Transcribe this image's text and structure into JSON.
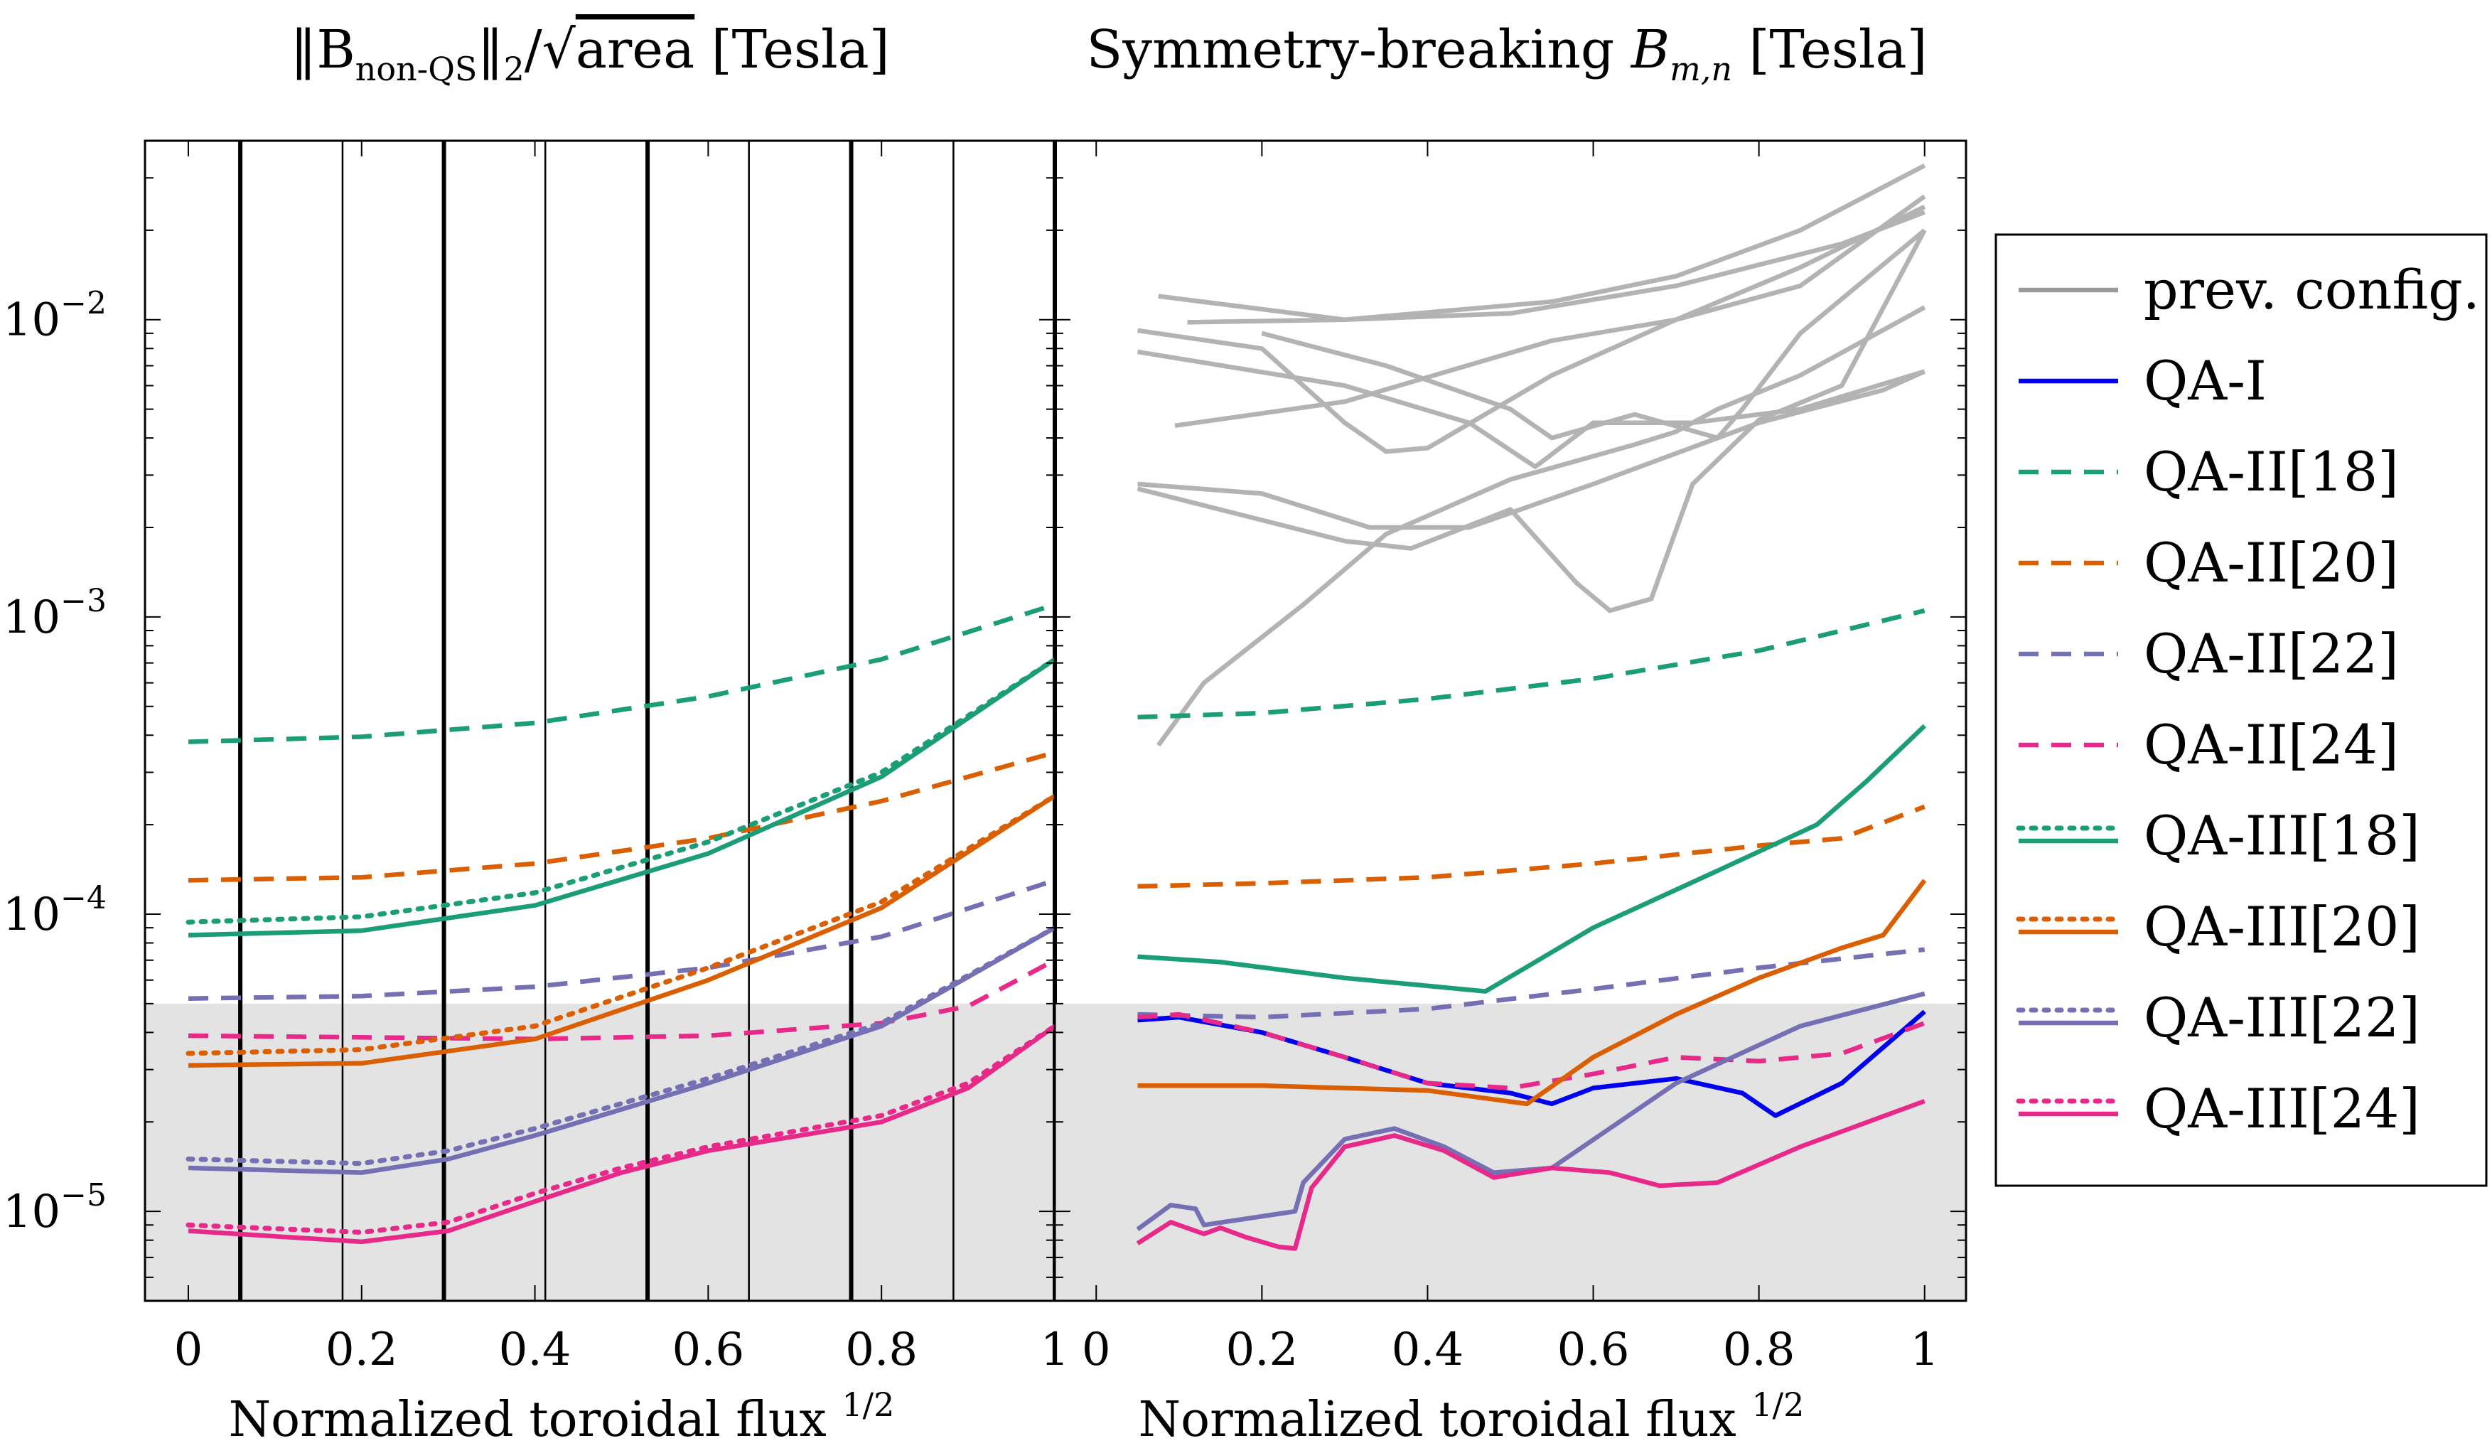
{
  "figure": {
    "left_title_parts": {
      "norm_open": "‖B",
      "sub": "non-QS",
      "norm_close": "‖",
      "norm_sub": "2",
      "slash": "/",
      "sqrt": "√",
      "area": "area",
      "unit": "[Tesla]"
    },
    "right_title_parts": {
      "text": "Symmetry-breaking ",
      "var": "B",
      "sub": "m,n",
      "unit": " [Tesla]"
    },
    "xlabel_text": "Normalized toroidal flux ",
    "xlabel_sup": "1/2"
  },
  "chart_data": [
    {
      "type": "line",
      "title": "||B_non-QS||_2/sqrt(area) [Tesla]",
      "xlabel": "Normalized toroidal flux ^1/2",
      "ylabel": "",
      "yscale": "log",
      "xlim": [
        -0.05,
        1.0
      ],
      "ylim": [
        5e-06,
        0.04
      ],
      "xticks": [
        0,
        0.2,
        0.4,
        0.6,
        0.8,
        1
      ],
      "xtick_labels": [
        "0",
        "0.2",
        "0.4",
        "0.6",
        "0.8",
        "1"
      ],
      "yticks": [
        1e-05,
        0.0001,
        0.001,
        0.01
      ],
      "ytick_labels": [
        {
          "base": "10",
          "exp": "−5"
        },
        {
          "base": "10",
          "exp": "−4"
        },
        {
          "base": "10",
          "exp": "−3"
        },
        {
          "base": "10",
          "exp": "−2"
        }
      ],
      "shaded_below": 5e-05,
      "vlines_thick": [
        0.06,
        0.295,
        0.53,
        0.765,
        1.0
      ],
      "vlines_thin": [
        0.178,
        0.412,
        0.647,
        0.883
      ],
      "series": [
        {
          "name": "QA-II[18]",
          "color": "#1b9e77",
          "style": "dashed",
          "x": [
            0,
            0.2,
            0.4,
            0.6,
            0.8,
            1
          ],
          "y": [
            0.00038,
            0.000395,
            0.00044,
            0.00054,
            0.00072,
            0.0011
          ]
        },
        {
          "name": "QA-II[20]",
          "color": "#d95f02",
          "style": "dashed",
          "x": [
            0,
            0.2,
            0.4,
            0.6,
            0.8,
            1
          ],
          "y": [
            0.00013,
            0.000133,
            0.000148,
            0.00018,
            0.00024,
            0.00035
          ]
        },
        {
          "name": "QA-II[22]",
          "color": "#7570b3",
          "style": "dashed",
          "x": [
            0,
            0.2,
            0.4,
            0.6,
            0.8,
            1
          ],
          "y": [
            5.2e-05,
            5.3e-05,
            5.7e-05,
            6.6e-05,
            8.4e-05,
            0.00013
          ]
        },
        {
          "name": "QA-II[24]",
          "color": "#e7298a",
          "style": "dashed",
          "x": [
            0,
            0.2,
            0.4,
            0.6,
            0.8,
            0.9,
            1
          ],
          "y": [
            3.9e-05,
            3.85e-05,
            3.8e-05,
            3.9e-05,
            4.3e-05,
            4.9e-05,
            7e-05
          ]
        },
        {
          "name": "QA-III[18] (dotted)",
          "color": "#1b9e77",
          "style": "dotted",
          "x": [
            0,
            0.2,
            0.4,
            0.6,
            0.8,
            1
          ],
          "y": [
            9.4e-05,
            9.8e-05,
            0.000118,
            0.000175,
            0.0003,
            0.00072
          ]
        },
        {
          "name": "QA-III[18]",
          "color": "#1b9e77",
          "style": "solid",
          "x": [
            0,
            0.2,
            0.4,
            0.6,
            0.8,
            1
          ],
          "y": [
            8.5e-05,
            8.8e-05,
            0.000107,
            0.00016,
            0.00029,
            0.00072
          ]
        },
        {
          "name": "QA-III[20] (dotted)",
          "color": "#d95f02",
          "style": "dotted",
          "x": [
            0,
            0.2,
            0.4,
            0.6,
            0.8,
            1
          ],
          "y": [
            3.4e-05,
            3.5e-05,
            4.2e-05,
            6.6e-05,
            0.00011,
            0.00025
          ]
        },
        {
          "name": "QA-III[20]",
          "color": "#d95f02",
          "style": "solid",
          "x": [
            0,
            0.2,
            0.4,
            0.6,
            0.8,
            1
          ],
          "y": [
            3.1e-05,
            3.15e-05,
            3.8e-05,
            6e-05,
            0.000105,
            0.00025
          ]
        },
        {
          "name": "QA-III[22] (dotted)",
          "color": "#7570b3",
          "style": "dotted",
          "x": [
            0,
            0.2,
            0.3,
            0.4,
            0.6,
            0.8,
            1
          ],
          "y": [
            1.5e-05,
            1.45e-05,
            1.6e-05,
            1.9e-05,
            2.8e-05,
            4.3e-05,
            9e-05
          ]
        },
        {
          "name": "QA-III[22]",
          "color": "#7570b3",
          "style": "solid",
          "x": [
            0,
            0.2,
            0.3,
            0.4,
            0.6,
            0.8,
            1
          ],
          "y": [
            1.4e-05,
            1.35e-05,
            1.5e-05,
            1.8e-05,
            2.7e-05,
            4.2e-05,
            9e-05
          ]
        },
        {
          "name": "QA-III[24] (dotted)",
          "color": "#e7298a",
          "style": "dotted",
          "x": [
            0,
            0.2,
            0.3,
            0.4,
            0.5,
            0.6,
            0.8,
            0.9,
            1
          ],
          "y": [
            9e-06,
            8.5e-06,
            9.2e-06,
            1.15e-05,
            1.4e-05,
            1.65e-05,
            2.1e-05,
            2.7e-05,
            4.2e-05
          ]
        },
        {
          "name": "QA-III[24]",
          "color": "#e7298a",
          "style": "solid",
          "x": [
            0,
            0.2,
            0.3,
            0.4,
            0.5,
            0.6,
            0.8,
            0.9,
            1
          ],
          "y": [
            8.6e-06,
            7.9e-06,
            8.6e-06,
            1.08e-05,
            1.35e-05,
            1.6e-05,
            2e-05,
            2.6e-05,
            4.2e-05
          ]
        }
      ]
    },
    {
      "type": "line",
      "title": "Symmetry-breaking B_m,n [Tesla]",
      "xlabel": "Normalized toroidal flux ^1/2",
      "ylabel": "",
      "yscale": "log",
      "xlim": [
        -0.05,
        1.05
      ],
      "ylim": [
        5e-06,
        0.04
      ],
      "xticks": [
        0,
        0.2,
        0.4,
        0.6,
        0.8,
        1
      ],
      "xtick_labels": [
        "0",
        "0.2",
        "0.4",
        "0.6",
        "0.8",
        "1"
      ],
      "shaded_below": 5e-05,
      "series": [
        {
          "name": "prev. config. 1",
          "color": "#b3b3b3",
          "style": "solid",
          "x": [
            0.075,
            0.3,
            0.5,
            0.7,
            0.9,
            1
          ],
          "y": [
            0.012,
            0.01,
            0.0105,
            0.013,
            0.018,
            0.023
          ]
        },
        {
          "name": "prev. config. 2",
          "color": "#b3b3b3",
          "style": "solid",
          "x": [
            0.11,
            0.3,
            0.55,
            0.7,
            0.85,
            1
          ],
          "y": [
            0.0098,
            0.01,
            0.0115,
            0.014,
            0.02,
            0.033
          ]
        },
        {
          "name": "prev. config. 3",
          "color": "#b3b3b3",
          "style": "solid",
          "x": [
            0.05,
            0.2,
            0.3,
            0.35,
            0.4,
            0.55,
            0.7,
            0.85,
            1
          ],
          "y": [
            0.0092,
            0.008,
            0.0045,
            0.0036,
            0.0037,
            0.0065,
            0.01,
            0.015,
            0.024
          ]
        },
        {
          "name": "prev. config. 4",
          "color": "#b3b3b3",
          "style": "solid",
          "x": [
            0.05,
            0.3,
            0.45,
            0.53,
            0.6,
            0.72,
            0.85,
            1
          ],
          "y": [
            0.0078,
            0.006,
            0.0045,
            0.0032,
            0.0045,
            0.0045,
            0.005,
            0.0067
          ]
        },
        {
          "name": "prev. config. 5",
          "color": "#b3b3b3",
          "style": "solid",
          "x": [
            0.095,
            0.3,
            0.55,
            0.7,
            0.85,
            1
          ],
          "y": [
            0.0044,
            0.0053,
            0.0085,
            0.01,
            0.013,
            0.026
          ]
        },
        {
          "name": "prev. config. 6",
          "color": "#b3b3b3",
          "style": "solid",
          "x": [
            0.05,
            0.2,
            0.33,
            0.45,
            0.6,
            0.8,
            0.95,
            1
          ],
          "y": [
            0.0028,
            0.0026,
            0.002,
            0.002,
            0.0028,
            0.0045,
            0.0058,
            0.0067
          ]
        },
        {
          "name": "prev. config. 7",
          "color": "#b3b3b3",
          "style": "solid",
          "x": [
            0.05,
            0.3,
            0.38,
            0.5,
            0.58,
            0.62,
            0.67,
            0.72,
            0.8,
            0.9,
            1
          ],
          "y": [
            0.0027,
            0.0018,
            0.0017,
            0.0023,
            0.0013,
            0.00105,
            0.00115,
            0.0028,
            0.0046,
            0.006,
            0.02
          ]
        },
        {
          "name": "prev. config. 8",
          "color": "#b3b3b3",
          "style": "solid",
          "x": [
            0.075,
            0.13,
            0.25,
            0.35,
            0.5,
            0.65,
            0.7,
            0.75,
            0.85,
            1
          ],
          "y": [
            0.00037,
            0.0006,
            0.0011,
            0.0019,
            0.0029,
            0.0038,
            0.0042,
            0.005,
            0.0065,
            0.011
          ]
        },
        {
          "name": "prev. config. 9",
          "color": "#b3b3b3",
          "style": "solid",
          "x": [
            0.2,
            0.35,
            0.5,
            0.55,
            0.65,
            0.75,
            0.78,
            0.85,
            1
          ],
          "y": [
            0.009,
            0.007,
            0.005,
            0.004,
            0.0048,
            0.004,
            0.005,
            0.009,
            0.02
          ]
        },
        {
          "name": "QA-I",
          "color": "#0000ee",
          "style": "solid",
          "x": [
            0.05,
            0.1,
            0.2,
            0.3,
            0.4,
            0.5,
            0.55,
            0.6,
            0.7,
            0.78,
            0.82,
            0.9,
            1
          ],
          "y": [
            4.4e-05,
            4.5e-05,
            4e-05,
            3.3e-05,
            2.7e-05,
            2.5e-05,
            2.3e-05,
            2.6e-05,
            2.8e-05,
            2.5e-05,
            2.1e-05,
            2.7e-05,
            4.7e-05
          ]
        },
        {
          "name": "QA-II[18]",
          "color": "#1b9e77",
          "style": "dashed",
          "x": [
            0.05,
            0.2,
            0.4,
            0.6,
            0.8,
            1
          ],
          "y": [
            0.00046,
            0.000475,
            0.00053,
            0.00062,
            0.00077,
            0.00105
          ]
        },
        {
          "name": "QA-II[20]",
          "color": "#d95f02",
          "style": "dashed",
          "x": [
            0.05,
            0.2,
            0.4,
            0.6,
            0.8,
            0.9,
            1
          ],
          "y": [
            0.000124,
            0.000127,
            0.000133,
            0.000148,
            0.00017,
            0.00018,
            0.00023
          ]
        },
        {
          "name": "QA-II[22]",
          "color": "#7570b3",
          "style": "dashed",
          "x": [
            0.05,
            0.2,
            0.4,
            0.6,
            0.8,
            1
          ],
          "y": [
            4.6e-05,
            4.5e-05,
            4.8e-05,
            5.6e-05,
            6.6e-05,
            7.6e-05
          ]
        },
        {
          "name": "QA-II[24]",
          "color": "#e7298a",
          "style": "dashed",
          "x": [
            0.05,
            0.1,
            0.2,
            0.3,
            0.4,
            0.5,
            0.6,
            0.7,
            0.8,
            0.9,
            1
          ],
          "y": [
            4.5e-05,
            4.6e-05,
            4e-05,
            3.3e-05,
            2.7e-05,
            2.6e-05,
            2.9e-05,
            3.3e-05,
            3.2e-05,
            3.4e-05,
            4.3e-05
          ]
        },
        {
          "name": "QA-III[18]",
          "color": "#1b9e77",
          "style": "solid",
          "x": [
            0.05,
            0.15,
            0.3,
            0.47,
            0.6,
            0.75,
            0.87,
            0.93,
            1
          ],
          "y": [
            7.2e-05,
            6.9e-05,
            6.1e-05,
            5.5e-05,
            9e-05,
            0.00014,
            0.0002,
            0.00028,
            0.00043
          ]
        },
        {
          "name": "QA-III[20]",
          "color": "#d95f02",
          "style": "solid",
          "x": [
            0.05,
            0.2,
            0.4,
            0.52,
            0.6,
            0.7,
            0.8,
            0.9,
            0.95,
            1
          ],
          "y": [
            2.65e-05,
            2.65e-05,
            2.55e-05,
            2.3e-05,
            3.3e-05,
            4.6e-05,
            6.1e-05,
            7.7e-05,
            8.5e-05,
            0.00013
          ]
        },
        {
          "name": "QA-III[22]",
          "color": "#7570b3",
          "style": "solid",
          "x": [
            0.05,
            0.09,
            0.12,
            0.13,
            0.24,
            0.25,
            0.3,
            0.36,
            0.42,
            0.48,
            0.55,
            0.7,
            0.85,
            1
          ],
          "y": [
            8.7e-06,
            1.05e-05,
            1.02e-05,
            9e-06,
            1e-05,
            1.25e-05,
            1.75e-05,
            1.9e-05,
            1.65e-05,
            1.35e-05,
            1.4e-05,
            2.7e-05,
            4.2e-05,
            5.4e-05
          ]
        },
        {
          "name": "QA-III[24]",
          "color": "#e7298a",
          "style": "solid",
          "x": [
            0.05,
            0.09,
            0.13,
            0.15,
            0.18,
            0.22,
            0.24,
            0.26,
            0.3,
            0.36,
            0.42,
            0.48,
            0.55,
            0.62,
            0.68,
            0.75,
            0.85,
            1
          ],
          "y": [
            7.8e-06,
            9.2e-06,
            8.4e-06,
            8.8e-06,
            8.2e-06,
            7.6e-06,
            7.5e-06,
            1.2e-05,
            1.65e-05,
            1.8e-05,
            1.6e-05,
            1.3e-05,
            1.4e-05,
            1.35e-05,
            1.22e-05,
            1.25e-05,
            1.65e-05,
            2.35e-05
          ]
        }
      ]
    }
  ],
  "legend": {
    "position": "right",
    "entries": [
      {
        "label": "prev. config.",
        "color": "#999999",
        "style": "solid"
      },
      {
        "label": "QA-I",
        "color": "#0000ee",
        "style": "solid"
      },
      {
        "label": "QA-II[18]",
        "color": "#1b9e77",
        "style": "dashed"
      },
      {
        "label": "QA-II[20]",
        "color": "#d95f02",
        "style": "dashed"
      },
      {
        "label": "QA-II[22]",
        "color": "#7570b3",
        "style": "dashed"
      },
      {
        "label": "QA-II[24]",
        "color": "#e7298a",
        "style": "dashed"
      },
      {
        "label": "QA-III[18]",
        "color": "#1b9e77",
        "style": "dotted+solid"
      },
      {
        "label": "QA-III[20]",
        "color": "#d95f02",
        "style": "dotted+solid"
      },
      {
        "label": "QA-III[22]",
        "color": "#7570b3",
        "style": "dotted+solid"
      },
      {
        "label": "QA-III[24]",
        "color": "#e7298a",
        "style": "dotted+solid"
      }
    ]
  },
  "colors": {
    "shade": "#e3e3e3",
    "frame": "#000000",
    "grid": "#000000"
  }
}
